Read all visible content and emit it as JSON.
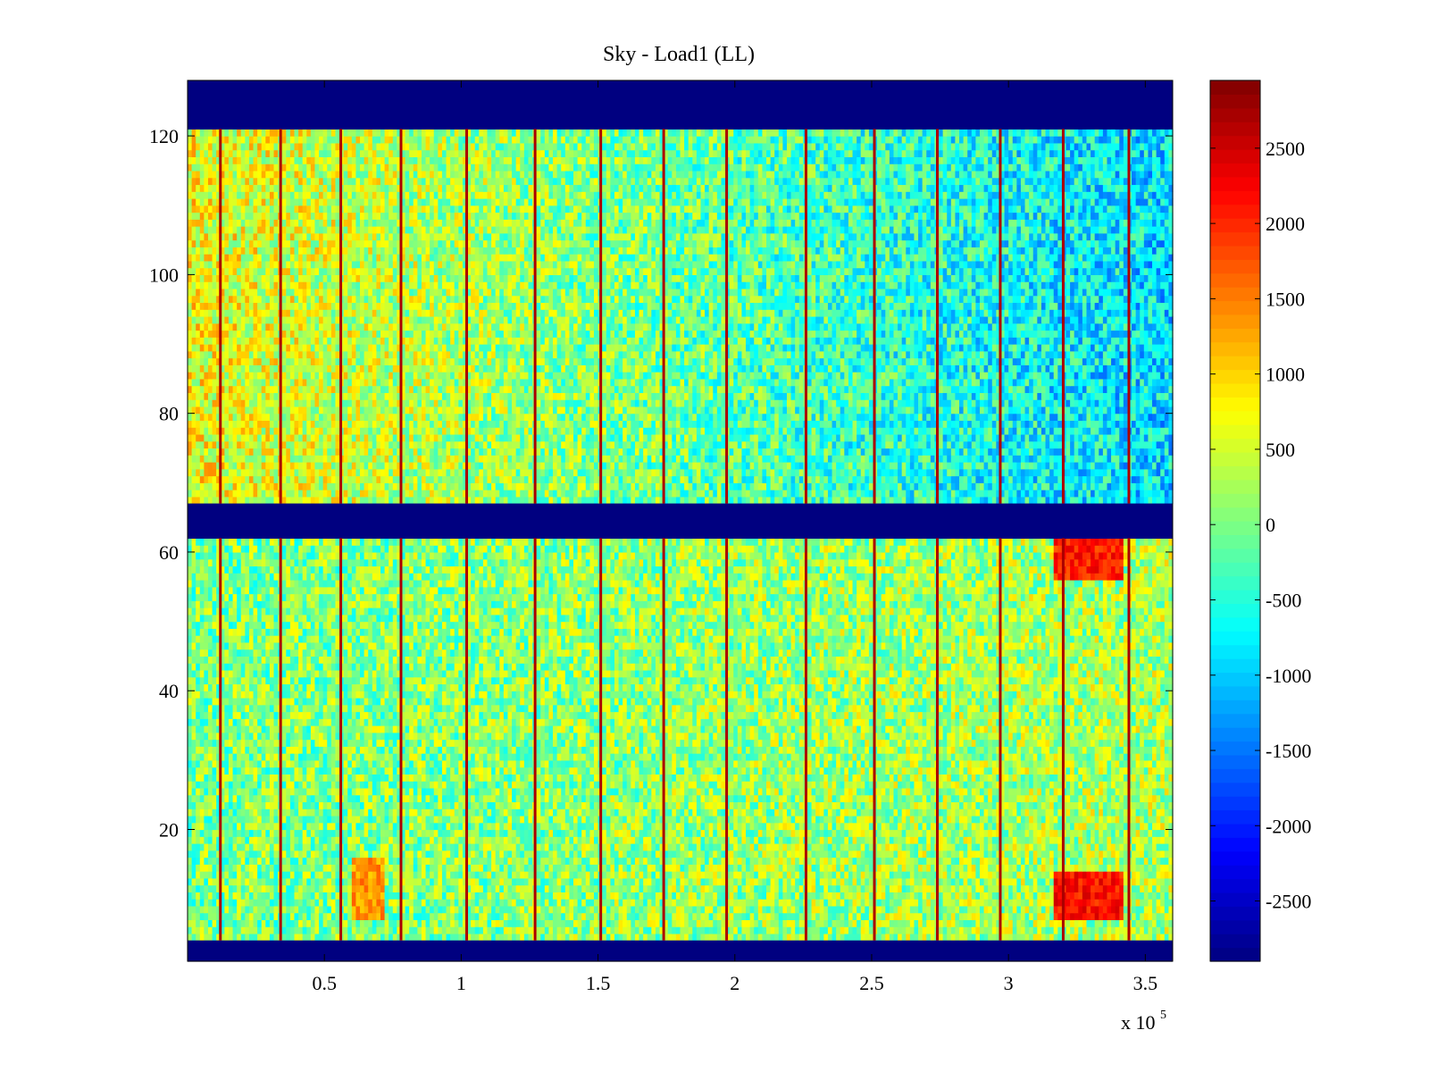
{
  "figure": {
    "title": "Sky - Load1 (LL)",
    "x_exponent_prefix": "x 10",
    "x_exponent_power": "5"
  },
  "chart_data": {
    "type": "heatmap",
    "title": "Sky - Load1 (LL)",
    "xlabel": "",
    "ylabel": "",
    "x_scale_multiplier": 100000,
    "xlim": [
      0,
      3.6
    ],
    "ylim": [
      1,
      128
    ],
    "x_ticks": [
      0.5,
      1,
      1.5,
      2,
      2.5,
      3,
      3.5
    ],
    "x_tick_labels": [
      "0.5",
      "1",
      "1.5",
      "2",
      "2.5",
      "3",
      "3.5"
    ],
    "y_ticks": [
      20,
      40,
      60,
      80,
      100,
      120
    ],
    "y_tick_labels": [
      "20",
      "40",
      "60",
      "80",
      "100",
      "120"
    ],
    "colorbar": {
      "colormap": "jet",
      "range": [
        -2900,
        2950
      ],
      "ticks": [
        2500,
        2000,
        1500,
        1000,
        500,
        0,
        -500,
        -1000,
        -1500,
        -2000,
        -2500
      ],
      "tick_labels": [
        "2500",
        "2000",
        "1500",
        "1000",
        "500",
        "0",
        "-500",
        "-1000",
        "-1500",
        "-2000",
        "-2500"
      ]
    },
    "masked_rows": [
      {
        "from": 121,
        "to": 128,
        "value": -2900
      },
      {
        "from": 62,
        "to": 67,
        "value": -2900
      },
      {
        "from": 1,
        "to": 4,
        "value": -2900
      }
    ],
    "bands": [
      {
        "rows": [
          67,
          121
        ],
        "base_value_start": 700,
        "base_value_end": -900
      },
      {
        "rows": [
          4,
          62
        ],
        "base_value_start": 0,
        "base_value_end": 300
      }
    ],
    "spike_columns_x": [
      0.12,
      0.34,
      0.56,
      0.78,
      1.02,
      1.27,
      1.51,
      1.74,
      1.97,
      2.26,
      2.51,
      2.74,
      2.97,
      3.2,
      3.44
    ],
    "spike_value": 2700,
    "hot_regions": [
      {
        "x": [
          3.17,
          3.42
        ],
        "rows": [
          56,
          61
        ],
        "value": 2400
      },
      {
        "x": [
          3.17,
          3.42
        ],
        "rows": [
          7,
          13
        ],
        "value": 2500
      },
      {
        "x": [
          0.6,
          0.72
        ],
        "rows": [
          7,
          15
        ],
        "value": 1700
      }
    ]
  }
}
